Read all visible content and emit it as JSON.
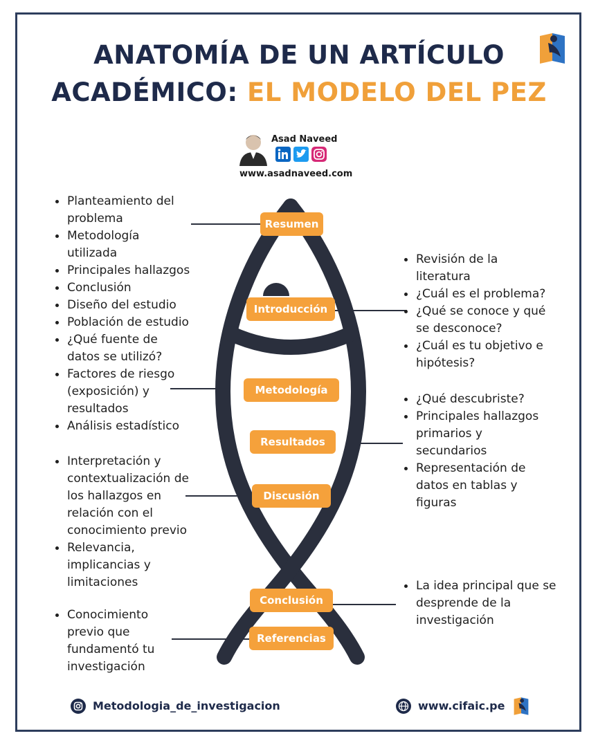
{
  "title": {
    "line1": "ANATOMÍA DE UN ARTÍCULO",
    "line2_part1": "ACADÉMICO: ",
    "line2_part2": "EL MODELO DEL PEZ"
  },
  "author": {
    "name": "Asad Naveed",
    "url": "www.asadnaveed.com",
    "social_icons": [
      "linkedin-icon",
      "twitter-icon",
      "instagram-icon"
    ]
  },
  "sections": [
    {
      "label": "Resumen"
    },
    {
      "label": "Introducción"
    },
    {
      "label": "Metodología"
    },
    {
      "label": "Resultados"
    },
    {
      "label": "Discusión"
    },
    {
      "label": "Conclusión"
    },
    {
      "label": "Referencias"
    }
  ],
  "notes": {
    "resumen": [
      "Planteamiento del problema",
      "Metodología utilizada",
      "Principales hallazgos",
      "Conclusión"
    ],
    "introduccion": [
      "Revisión de la literatura",
      "¿Cuál es el problema?",
      "¿Qué se conoce y qué se desconoce?",
      "¿Cuál es tu objetivo e hipótesis?"
    ],
    "metodologia": [
      "Diseño del estudio",
      "Población de estudio",
      "¿Qué fuente de datos se utilizó?",
      "Factores de riesgo (exposición) y resultados",
      "Análisis estadístico"
    ],
    "resultados": [
      "¿Qué descubriste?",
      "Principales hallazgos primarios y secundarios",
      "Representación de datos en tablas y figuras"
    ],
    "discusion": [
      "Interpretación y contextualización de los hallazgos en relación con el conocimiento previo",
      "Relevancia, implicancias y limitaciones"
    ],
    "conclusion": [
      "La idea principal que se desprende de la investigación"
    ],
    "referencias": [
      "Conocimiento previo que fundamentó tu investigación"
    ]
  },
  "footer": {
    "instagram_handle": "Metodologia_de_investigacion",
    "website": "www.cifaic.pe"
  },
  "colors": {
    "navy": "#1e2a4a",
    "orange": "#f5a13b",
    "fish": "#2a2f3d"
  }
}
